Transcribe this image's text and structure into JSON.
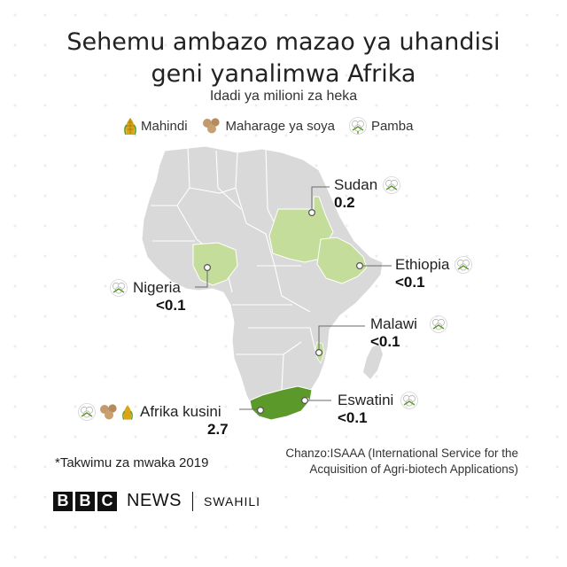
{
  "title": {
    "line1": "Sehemu ambazo mazao ya uhandisi",
    "line2": "geni yanalimwa Afrika"
  },
  "subtitle": "Idadi ya milioni za heka",
  "legend": [
    {
      "icon": "maize-icon",
      "label": "Mahindi"
    },
    {
      "icon": "soybean-icon",
      "label": "Maharage ya soya"
    },
    {
      "icon": "cotton-icon",
      "label": "Pamba"
    }
  ],
  "colors": {
    "land": "#d9d9d9",
    "border": "#ffffff",
    "highlight_light": "#c4dd9a",
    "highlight_dark": "#5b9a2a",
    "leader": "#6a6a6a"
  },
  "countries": {
    "sudan": {
      "name": "Sudan",
      "value": "0.2",
      "crops": [
        "cotton-icon"
      ]
    },
    "ethiopia": {
      "name": "Ethiopia",
      "value": "<0.1",
      "crops": [
        "cotton-icon"
      ]
    },
    "nigeria": {
      "name": "Nigeria",
      "value": "<0.1",
      "crops": [
        "cotton-icon"
      ]
    },
    "malawi": {
      "name": "Malawi",
      "value": "<0.1",
      "crops": [
        "cotton-icon"
      ]
    },
    "eswatini": {
      "name": "Eswatini",
      "value": "<0.1",
      "crops": [
        "cotton-icon"
      ]
    },
    "south_africa": {
      "name": "Afrika kusini",
      "value": "2.7",
      "crops": [
        "cotton-icon",
        "soybean-icon",
        "maize-icon"
      ]
    }
  },
  "footnote": "*Takwimu za mwaka 2019",
  "source": {
    "line1": "Chanzo:ISAAA (International Service for the",
    "line2": "Acquisition of Agri-biotech Applications)"
  },
  "branding": {
    "bbc_letters": [
      "B",
      "B",
      "C"
    ],
    "news": "NEWS",
    "service": "SWAHILI"
  }
}
